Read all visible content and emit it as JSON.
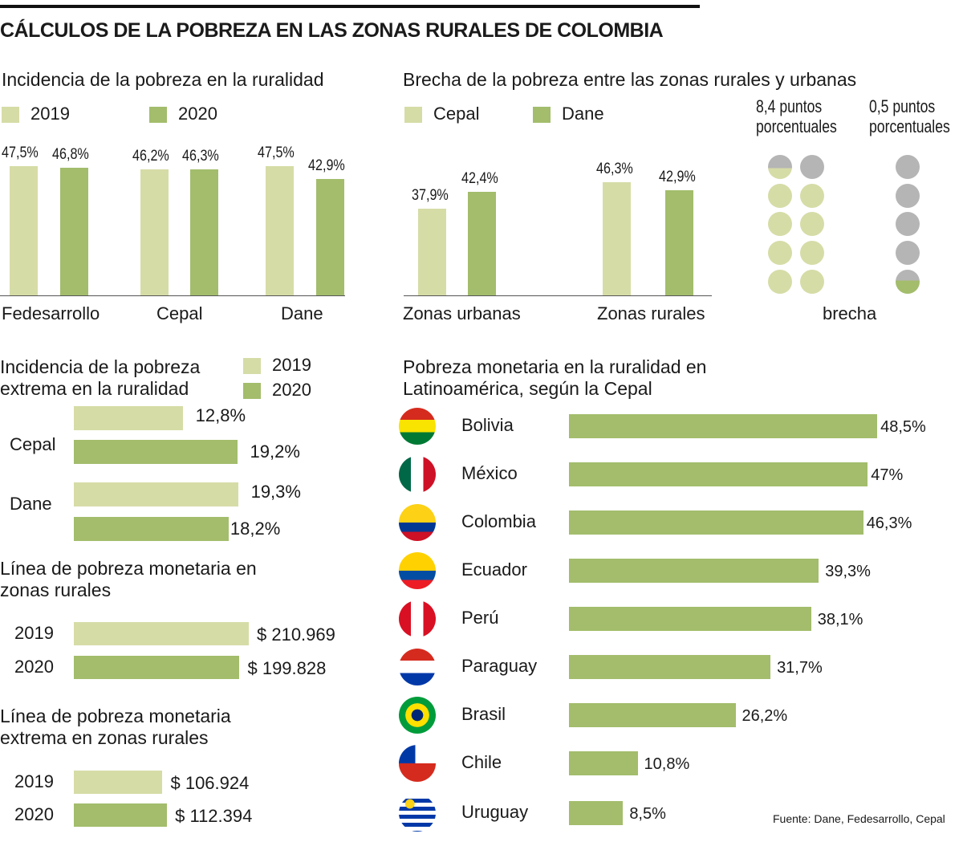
{
  "title": "CÁLCULOS DE LA POBREZA EN LAS ZONAS RURALES DE COLOMBIA",
  "colors": {
    "light": "#d6dca6",
    "green": "#a3bd6c",
    "gray": "#b5b5b5"
  },
  "source": "Fuente: Dane, Fedesarrollo, Cepal",
  "chart_data": [
    {
      "type": "bar",
      "title": "Incidencia de la pobreza en la ruralidad",
      "categories": [
        "Fedesarrollo",
        "Cepal",
        "Dane"
      ],
      "series": [
        {
          "name": "2019",
          "values": [
            47.5,
            46.2,
            47.5
          ],
          "labels": [
            "47,5%",
            "46,2%",
            "47,5%"
          ]
        },
        {
          "name": "2020",
          "values": [
            46.8,
            46.3,
            42.9
          ],
          "labels": [
            "46,8%",
            "46,3%",
            "42,9%"
          ]
        }
      ]
    },
    {
      "type": "bar",
      "title": "Brecha de la pobreza entre las zonas rurales y urbanas",
      "categories": [
        "Zonas urbanas",
        "Zonas rurales"
      ],
      "series": [
        {
          "name": "Cepal",
          "values": [
            37.9,
            46.3
          ],
          "labels": [
            "37,9%",
            "46,3%"
          ]
        },
        {
          "name": "Dane",
          "values": [
            42.4,
            42.9
          ],
          "labels": [
            "42,4%",
            "42,9%"
          ]
        }
      ],
      "gaps": [
        {
          "label": "8,4 puntos porcentuales",
          "value": 8.4
        },
        {
          "label": "0,5 puntos porcentuales",
          "value": 0.5
        }
      ],
      "gap_label": "brecha"
    },
    {
      "type": "bar",
      "orientation": "horizontal",
      "title": "Incidencia de la pobreza extrema en la ruralidad",
      "categories": [
        "Cepal",
        "Dane"
      ],
      "series": [
        {
          "name": "2019",
          "values": [
            12.8,
            19.3
          ],
          "labels": [
            "12,8%",
            "19,3%"
          ]
        },
        {
          "name": "2020",
          "values": [
            19.2,
            18.2
          ],
          "labels": [
            "19,2%",
            "18,2%"
          ]
        }
      ]
    },
    {
      "type": "bar",
      "orientation": "horizontal",
      "title": "Línea de pobreza monetaria en zonas rurales",
      "categories": [
        "2019",
        "2020"
      ],
      "values": [
        210969,
        199828
      ],
      "labels": [
        "$ 210.969",
        "$ 199.828"
      ]
    },
    {
      "type": "bar",
      "orientation": "horizontal",
      "title": "Línea de pobreza monetaria extrema en zonas rurales",
      "categories": [
        "2019",
        "2020"
      ],
      "values": [
        106924,
        112394
      ],
      "labels": [
        "$ 106.924",
        "$ 112.394"
      ]
    },
    {
      "type": "bar",
      "orientation": "horizontal",
      "title": "Pobreza monetaria en la ruralidad en Latinoamérica, según la Cepal",
      "categories": [
        "Bolivia",
        "México",
        "Colombia",
        "Ecuador",
        "Perú",
        "Paraguay",
        "Brasil",
        "Chile",
        "Uruguay"
      ],
      "values": [
        48.5,
        47,
        46.3,
        39.3,
        38.1,
        31.7,
        26.2,
        10.8,
        8.5
      ],
      "labels": [
        "48,5%",
        "47%",
        "46,3%",
        "39,3%",
        "38,1%",
        "31,7%",
        "26,2%",
        "10,8%",
        "8,5%"
      ]
    }
  ]
}
